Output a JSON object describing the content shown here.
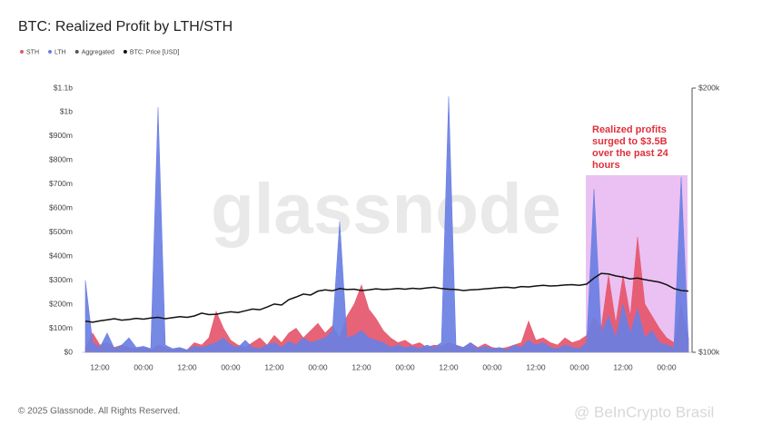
{
  "chart_data": {
    "type": "area",
    "title": "BTC: Realized Profit by LTH/STH",
    "watermark": "glassnode",
    "annotation": [
      "Realized profits",
      "surged to $3.5B",
      "over the past 24",
      "hours"
    ],
    "footer": "© 2025 Glassnode. All Rights Reserved.",
    "credit": "@ BeInCrypto Brasil",
    "legend": [
      {
        "name": "STH",
        "color": "#e5566b"
      },
      {
        "name": "LTH",
        "color": "#6a7fe3"
      },
      {
        "name": "Aggregated",
        "color": "#555555"
      },
      {
        "name": "BTC: Price [USD]",
        "color": "#111111"
      }
    ],
    "categories": [
      null,
      null,
      "12:00",
      null,
      null,
      null,
      null,
      null,
      "00:00",
      null,
      null,
      null,
      null,
      null,
      "12:00",
      null,
      null,
      null,
      null,
      null,
      "00:00",
      null,
      null,
      null,
      null,
      null,
      "12:00",
      null,
      null,
      null,
      null,
      null,
      "00:00",
      null,
      null,
      null,
      null,
      null,
      "12:00",
      null,
      null,
      null,
      null,
      null,
      "00:00",
      null,
      null,
      null,
      null,
      null,
      "12:00",
      null,
      null,
      null,
      null,
      null,
      "00:00",
      null,
      null,
      null,
      null,
      null,
      "12:00",
      null,
      null,
      null,
      null,
      null,
      "00:00",
      null,
      null,
      null,
      null,
      null,
      "12:00",
      null,
      null,
      null,
      null,
      null,
      "00:00",
      null,
      null,
      null
    ],
    "series": [
      {
        "name": "STH",
        "color": "#e5566b",
        "values": [
          20,
          80,
          30,
          40,
          20,
          30,
          20,
          15,
          20,
          10,
          30,
          20,
          10,
          15,
          10,
          40,
          30,
          60,
          170,
          100,
          50,
          30,
          20,
          40,
          60,
          30,
          70,
          40,
          80,
          100,
          60,
          90,
          120,
          80,
          110,
          60,
          150,
          200,
          280,
          180,
          140,
          90,
          60,
          40,
          50,
          30,
          40,
          20,
          30,
          25,
          40,
          30,
          20,
          40,
          20,
          35,
          20,
          15,
          20,
          30,
          40,
          130,
          50,
          60,
          40,
          30,
          60,
          40,
          50,
          70,
          150,
          100,
          320,
          120,
          320,
          150,
          480,
          200,
          150,
          100,
          60,
          40,
          200,
          60
        ]
      },
      {
        "name": "LTH",
        "color": "#6a7fe3",
        "values": [
          300,
          40,
          20,
          80,
          15,
          30,
          60,
          20,
          25,
          15,
          1020,
          30,
          15,
          20,
          10,
          25,
          20,
          30,
          40,
          60,
          30,
          20,
          50,
          20,
          15,
          30,
          40,
          20,
          45,
          30,
          60,
          40,
          50,
          60,
          90,
          545,
          60,
          70,
          90,
          60,
          50,
          40,
          20,
          30,
          20,
          25,
          15,
          30,
          20,
          40,
          1065,
          30,
          20,
          40,
          15,
          25,
          15,
          20,
          10,
          30,
          20,
          50,
          30,
          40,
          20,
          15,
          30,
          20,
          15,
          40,
          680,
          80,
          150,
          60,
          200,
          80,
          180,
          60,
          90,
          40,
          30,
          20,
          730,
          40
        ]
      },
      {
        "name": "BTC: Price [USD]",
        "color": "#111111",
        "axis": "y2",
        "values": [
          108500,
          108200,
          108600,
          108900,
          109200,
          108800,
          109000,
          109300,
          109100,
          109400,
          109600,
          109200,
          109500,
          109800,
          109600,
          110000,
          110800,
          110400,
          110500,
          110900,
          111200,
          111000,
          111500,
          112000,
          111800,
          112600,
          113500,
          113200,
          114800,
          115600,
          116500,
          116200,
          117400,
          117800,
          117500,
          118200,
          117900,
          118000,
          117600,
          117800,
          118100,
          117900,
          118000,
          118200,
          118000,
          118300,
          118100,
          118400,
          118600,
          118200,
          118000,
          117900,
          117600,
          117800,
          117900,
          118100,
          118300,
          118500,
          118600,
          118400,
          118800,
          118700,
          119000,
          119200,
          119000,
          119100,
          119300,
          119400,
          119200,
          119600,
          121500,
          123000,
          122800,
          122200,
          121800,
          121200,
          121500,
          121000,
          120600,
          120200,
          119400,
          118200,
          117600,
          117400
        ]
      }
    ],
    "ylim": [
      0,
      1100
    ],
    "yticks": [
      {
        "value": 0,
        "label": "$0"
      },
      {
        "value": 100,
        "label": "$100m"
      },
      {
        "value": 200,
        "label": "$200m"
      },
      {
        "value": 300,
        "label": "$300m"
      },
      {
        "value": 400,
        "label": "$400m"
      },
      {
        "value": 500,
        "label": "$500m"
      },
      {
        "value": 600,
        "label": "$600m"
      },
      {
        "value": 700,
        "label": "$700m"
      },
      {
        "value": 800,
        "label": "$800m"
      },
      {
        "value": 900,
        "label": "$900m"
      },
      {
        "value": 1000,
        "label": "$1b"
      },
      {
        "value": 1100,
        "label": "$1.1b"
      }
    ],
    "y2lim": [
      100000,
      200000
    ],
    "y2ticks": [
      {
        "value": 100000,
        "label": "$100k"
      },
      {
        "value": 200000,
        "label": "$200k"
      }
    ],
    "y2_log": true,
    "grid": false
  }
}
